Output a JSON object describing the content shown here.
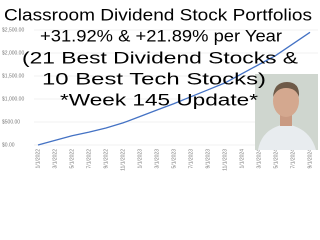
{
  "chart_data": {
    "type": "line",
    "annotations": [
      "Classroom Dividend Stock Portfolios",
      "+31.92% & +21.89% per Year",
      "(21 Best Dividend Stocks &",
      "10 Best Tech Stocks)",
      "*Week 145 Update*"
    ],
    "categories": [
      "1/1/2022",
      "3/1/2022",
      "5/1/2022",
      "7/1/2022",
      "9/1/2022",
      "11/1/2022",
      "1/1/2023",
      "3/1/2023",
      "5/1/2023",
      "7/1/2023",
      "9/1/2023",
      "11/1/2023",
      "1/1/2024",
      "3/1/2024",
      "5/1/2024",
      "7/1/2024",
      "9/1/2024"
    ],
    "values": [
      0,
      100,
      200,
      280,
      370,
      480,
      620,
      760,
      900,
      1050,
      1200,
      1350,
      1550,
      1750,
      1950,
      2200,
      2450
    ],
    "color": "#4472c4",
    "ylim": [
      0,
      3000
    ],
    "yticks": [
      {
        "value": 0,
        "label": "$0.00"
      },
      {
        "value": 500,
        "label": "$500.00"
      },
      {
        "value": 1000,
        "label": "$1,000.00"
      },
      {
        "value": 1500,
        "label": "$1,500.00"
      },
      {
        "value": 2000,
        "label": "$2,000.00"
      },
      {
        "value": 2500,
        "label": "$2,500.00"
      }
    ],
    "grid": true
  }
}
